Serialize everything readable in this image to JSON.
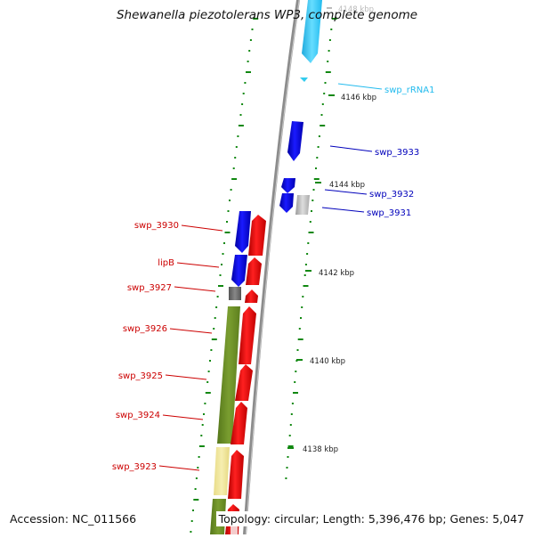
{
  "title": "Shewanella piezotolerans WP3, complete genome",
  "footer": {
    "accession": "Accession: NC_011566",
    "topology": "Topology: circular; Length: 5,396,476 bp; Genes: 5,047"
  },
  "scale_labels": [
    "4148 kbp",
    "4146 kbp",
    "4144 kbp",
    "4142 kbp",
    "4140 kbp",
    "4138 kbp"
  ],
  "left_labels": [
    "swp_3930",
    "lipB",
    "swp_3927",
    "swp_3926",
    "swp_3925",
    "swp_3924",
    "swp_3923"
  ],
  "right_labels": [
    "swp_rRNA1",
    "swp_3933",
    "swp_3932",
    "swp_3931"
  ],
  "colors": {
    "backbone": "#8c8c8c",
    "forward_gene": "#ee0000",
    "reverse_gene": "#0000ee",
    "rrna": "#33ccee",
    "cog_olive": "#6b8e23",
    "cog_pale": "#f0e68c",
    "grey_block": "#777777",
    "tick": "#118811",
    "left_label": "#cc0000",
    "right_label": "#0000bb",
    "rrna_label": "#22bbee"
  }
}
